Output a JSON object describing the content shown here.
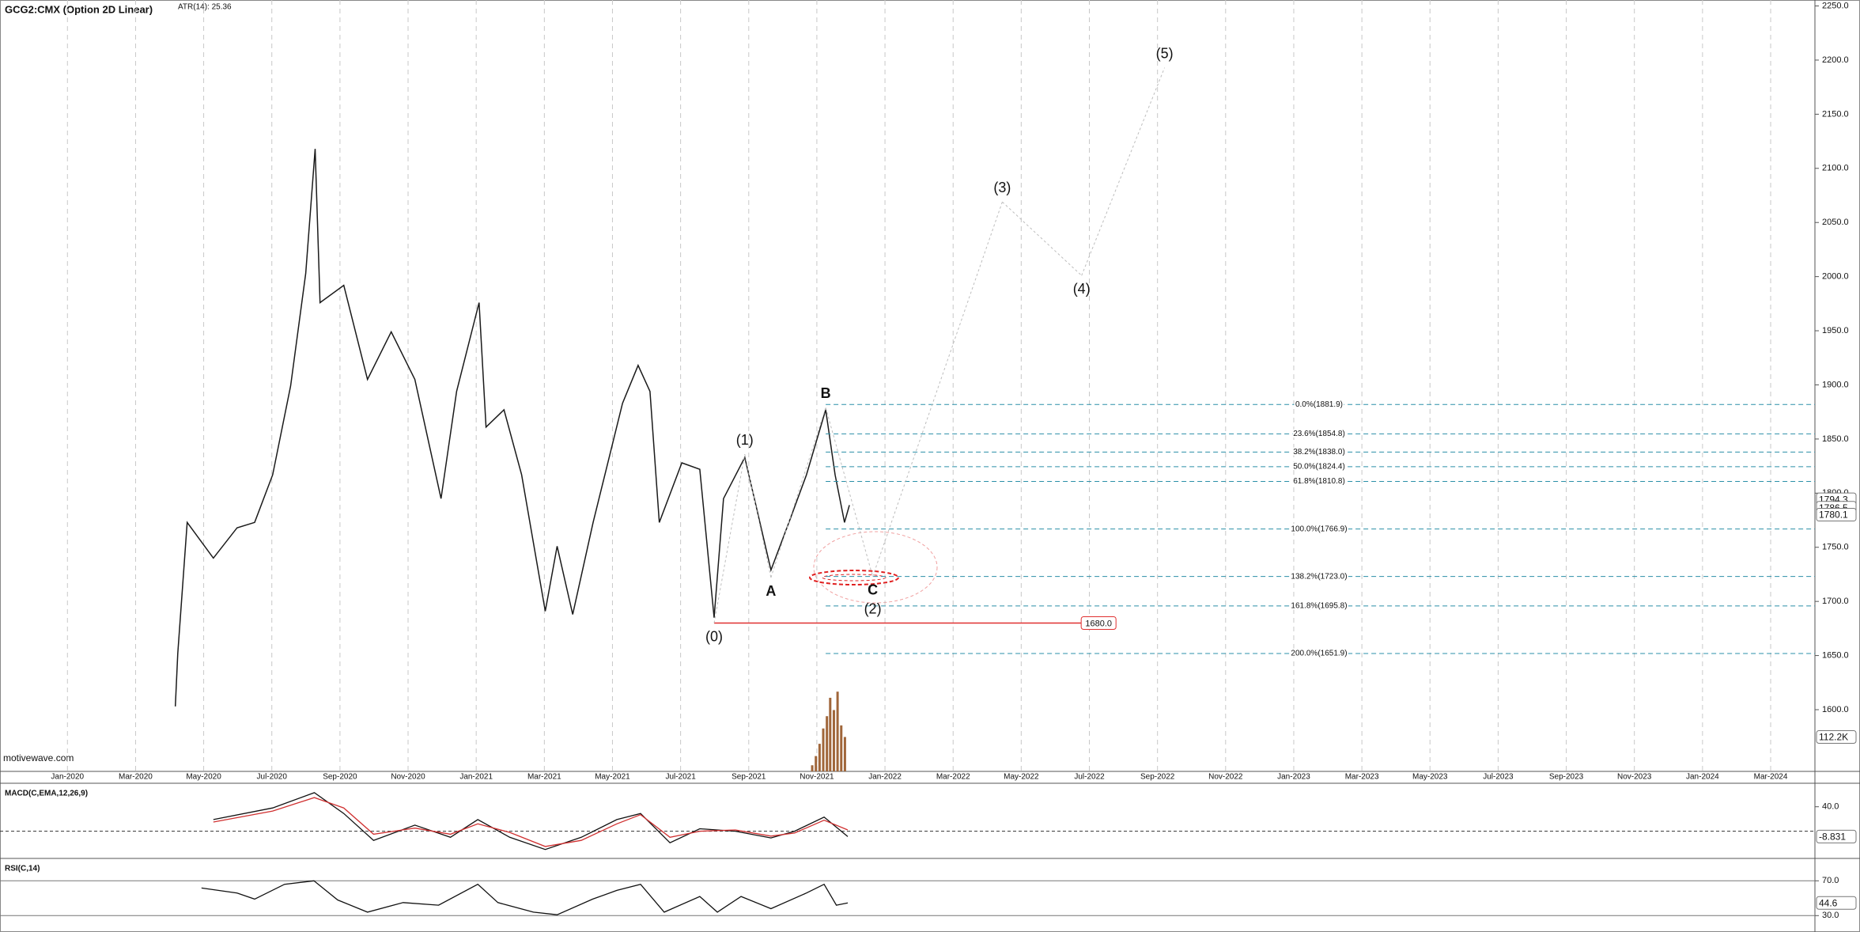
{
  "chart_data": [
    {
      "type": "line",
      "title": "GCG2:CMX (Option 2D Linear)",
      "subtitle": "ATR(14): 25.36",
      "watermark": "motivewave.com",
      "xlim": [
        2019.835,
        2024.275
      ],
      "xticks": [
        {
          "value": 2020,
          "label": "Jan-2020"
        },
        {
          "value": 2020.1667,
          "label": "Mar-2020"
        },
        {
          "value": 2020.3333,
          "label": "May-2020"
        },
        {
          "value": 2020.5,
          "label": "Jul-2020"
        },
        {
          "value": 2020.6667,
          "label": "Sep-2020"
        },
        {
          "value": 2020.8333,
          "label": "Nov-2020"
        },
        {
          "value": 2021,
          "label": "Jan-2021"
        },
        {
          "value": 2021.1667,
          "label": "Mar-2021"
        },
        {
          "value": 2021.3333,
          "label": "May-2021"
        },
        {
          "value": 2021.5,
          "label": "Jul-2021"
        },
        {
          "value": 2021.6667,
          "label": "Sep-2021"
        },
        {
          "value": 2021.8333,
          "label": "Nov-2021"
        },
        {
          "value": 2022,
          "label": "Jan-2022"
        },
        {
          "value": 2022.1667,
          "label": "Mar-2022"
        },
        {
          "value": 2022.3333,
          "label": "May-2022"
        },
        {
          "value": 2022.5,
          "label": "Jul-2022"
        },
        {
          "value": 2022.6667,
          "label": "Sep-2022"
        },
        {
          "value": 2022.8333,
          "label": "Nov-2022"
        },
        {
          "value": 2023,
          "label": "Jan-2023"
        },
        {
          "value": 2023.1667,
          "label": "Mar-2023"
        },
        {
          "value": 2023.3333,
          "label": "May-2023"
        },
        {
          "value": 2023.5,
          "label": "Jul-2023"
        },
        {
          "value": 2023.6667,
          "label": "Sep-2023"
        },
        {
          "value": 2023.8333,
          "label": "Nov-2023"
        },
        {
          "value": 2024,
          "label": "Jan-2024"
        },
        {
          "value": 2024.1667,
          "label": "Mar-2024"
        }
      ],
      "ylim": [
        1543,
        2255.5
      ],
      "yticks": [
        {
          "value": 2250,
          "label": "2250.0"
        },
        {
          "value": 2200,
          "label": "2200.0"
        },
        {
          "value": 2150,
          "label": "2150.0"
        },
        {
          "value": 2100,
          "label": "2100.0"
        },
        {
          "value": 2050,
          "label": "2050.0"
        },
        {
          "value": 2000,
          "label": "2000.0"
        },
        {
          "value": 1950,
          "label": "1950.0"
        },
        {
          "value": 1900,
          "label": "1900.0"
        },
        {
          "value": 1850,
          "label": "1850.0"
        },
        {
          "value": 1800,
          "label": "1800.0"
        },
        {
          "value": 1750,
          "label": "1750.0"
        },
        {
          "value": 1700,
          "label": "1700.0"
        },
        {
          "value": 1650,
          "label": "1650.0"
        },
        {
          "value": 1600,
          "label": "1600.0"
        }
      ],
      "y2lim": [
        0,
        2515000
      ],
      "grid": "x",
      "series": [
        {
          "color": "#1a1a1a",
          "x": [
            2020.264,
            2020.27,
            2020.293,
            2020.357,
            2020.415,
            2020.458,
            2020.502,
            2020.546,
            2020.583,
            2020.606,
            2020.618,
            2020.676,
            2020.734,
            2020.792,
            2020.85,
            2020.914,
            2020.952,
            2021.007,
            2021.024,
            2021.068,
            2021.111,
            2021.169,
            2021.198,
            2021.236,
            2021.286,
            2021.358,
            2021.396,
            2021.425,
            2021.448,
            2021.503,
            2021.547,
            2021.582,
            2021.605,
            2021.657,
            2021.721,
            2021.765,
            2021.808,
            2021.855,
            2021.878,
            2021.901,
            2021.913
          ],
          "values": [
            1603,
            1652,
            1773,
            1740,
            1768,
            1773,
            1817,
            1899,
            2003,
            2118,
            1976,
            1992,
            1905,
            1949,
            1905,
            1795,
            1894,
            1976,
            1861,
            1877,
            1817,
            1691,
            1751,
            1688,
            1773,
            1883,
            1918,
            1894,
            1773,
            1828,
            1822,
            1685,
            1795,
            1833,
            1729,
            1773,
            1817,
            1877,
            1817,
            1773,
            1789
          ]
        },
        {
          "type": "bar",
          "axis": "y2",
          "color": "#a0663a",
          "x": [
            2021.822,
            2021.831,
            2021.84,
            2021.849,
            2021.858,
            2021.866,
            2021.875,
            2021.884,
            2021.893,
            2021.902
          ],
          "values": [
            20000,
            50000,
            90000,
            140000,
            180000,
            240000,
            200000,
            260000,
            150000,
            112200
          ]
        }
      ],
      "price_tags": [
        {
          "value": 1794.3,
          "label": "1794.3"
        },
        {
          "value": 1786.5,
          "label": "1786.5"
        },
        {
          "value": 1780.1,
          "label": "1780.1"
        }
      ],
      "volume_tag": {
        "value": 112200,
        "label": "112.2K"
      },
      "fib": {
        "color": "#2a8fa8",
        "x_start": 2021.855,
        "levels": [
          {
            "value": 1881.9,
            "label": "0.0%(1881.9)"
          },
          {
            "value": 1854.8,
            "label": "23.6%(1854.8)"
          },
          {
            "value": 1838.0,
            "label": "38.2%(1838.0)"
          },
          {
            "value": 1824.4,
            "label": "50.0%(1824.4)"
          },
          {
            "value": 1810.8,
            "label": "61.8%(1810.8)"
          },
          {
            "value": 1766.9,
            "label": "100.0%(1766.9)"
          },
          {
            "value": 1723.0,
            "label": "138.2%(1723.0)"
          },
          {
            "value": 1695.8,
            "label": "161.8%(1695.8)"
          },
          {
            "value": 1651.9,
            "label": "200.0%(1651.9)"
          }
        ]
      },
      "support": {
        "value": 1680,
        "label": "1680.0",
        "color": "#e03030",
        "x_start": 2021.582,
        "x_end": 2022.48
      },
      "waves": [
        {
          "label": "(0)",
          "x": 2021.582,
          "y": 1680,
          "position": "below",
          "bold": false
        },
        {
          "label": "(1)",
          "x": 2021.657,
          "y": 1836,
          "position": "above",
          "bold": false
        },
        {
          "label": "A",
          "x": 2021.721,
          "y": 1722,
          "position": "below",
          "bold": true
        },
        {
          "label": "B",
          "x": 2021.855,
          "y": 1879,
          "position": "above",
          "bold": true
        },
        {
          "label": "C",
          "x": 2021.97,
          "y": 1723,
          "position": "below",
          "bold": true
        },
        {
          "label": "(2)",
          "x": 2021.97,
          "y": 1723,
          "position": "far-below",
          "bold": false
        },
        {
          "label": "(3)",
          "x": 2022.287,
          "y": 2069,
          "position": "above",
          "bold": false
        },
        {
          "label": "(4)",
          "x": 2022.481,
          "y": 2001,
          "position": "below",
          "bold": false
        },
        {
          "label": "(5)",
          "x": 2022.684,
          "y": 2193,
          "position": "above",
          "bold": false
        }
      ]
    },
    {
      "type": "line",
      "title": "MACD(C,EMA,12,26,9)",
      "ylim": [
        -42,
        72
      ],
      "yticks": [
        {
          "value": 40,
          "label": "40.0"
        }
      ],
      "x": [
        2020.357,
        2020.502,
        2020.604,
        2020.676,
        2020.749,
        2020.85,
        2020.937,
        2021.004,
        2021.082,
        2021.169,
        2021.257,
        2021.344,
        2021.402,
        2021.474,
        2021.547,
        2021.634,
        2021.721,
        2021.779,
        2021.851,
        2021.909
      ],
      "series": [
        {
          "color": "#111111",
          "values": [
            19,
            38,
            63,
            29,
            -15,
            10,
            -10,
            19,
            -10,
            -30,
            -10,
            19,
            29,
            -19,
            4,
            0,
            -11,
            0,
            23,
            -8.831
          ]
        },
        {
          "color": "#d03030",
          "values": [
            15,
            33,
            55,
            38,
            -5,
            5,
            -5,
            12,
            -2,
            -25,
            -15,
            12,
            27,
            -10,
            0,
            2,
            -8,
            -3,
            18,
            2
          ]
        }
      ],
      "value_tag": {
        "value": -8.831,
        "label": "-8.831"
      }
    },
    {
      "type": "line",
      "title": "RSI(C,14)",
      "ylim": [
        13,
        93
      ],
      "yticks": [
        {
          "value": 70,
          "label": "70.0"
        },
        {
          "value": 30,
          "label": "30.0"
        }
      ],
      "grid": "y",
      "x": [
        2020.328,
        2020.415,
        2020.458,
        2020.531,
        2020.603,
        2020.661,
        2020.734,
        2020.821,
        2020.908,
        2021.004,
        2021.053,
        2021.14,
        2021.198,
        2021.285,
        2021.344,
        2021.402,
        2021.46,
        2021.547,
        2021.59,
        2021.648,
        2021.721,
        2021.808,
        2021.851,
        2021.881,
        2021.909
      ],
      "series": [
        {
          "color": "#111111",
          "values": [
            61.7,
            56,
            49,
            66,
            70,
            48,
            34,
            45,
            42,
            66,
            45,
            34,
            31,
            49,
            59,
            66,
            34,
            52,
            34,
            52,
            38,
            56,
            66,
            42,
            44.6
          ]
        }
      ],
      "value_tag": 44.6
    }
  ]
}
